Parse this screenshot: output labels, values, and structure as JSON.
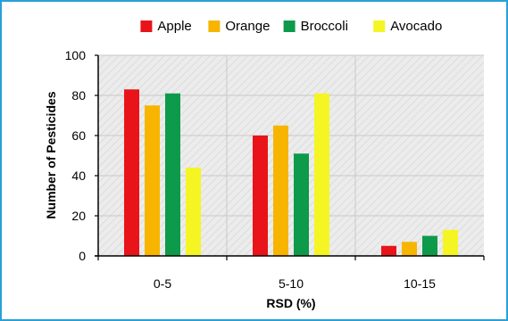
{
  "chart_data": {
    "type": "bar",
    "title": "",
    "xlabel": "RSD (%)",
    "ylabel": "Number of Pesticides",
    "categories": [
      "0-5",
      "5-10",
      "10-15"
    ],
    "ylim": [
      0,
      100
    ],
    "yticks": [
      "0",
      "20",
      "40",
      "60",
      "80",
      "100"
    ],
    "grid": true,
    "legend_position": "top",
    "series": [
      {
        "name": "Apple",
        "color": "#e8141a",
        "values": [
          83,
          60,
          5
        ]
      },
      {
        "name": "Orange",
        "color": "#f7b500",
        "values": [
          75,
          65,
          7
        ]
      },
      {
        "name": "Broccoli",
        "color": "#0d9a4a",
        "values": [
          81,
          51,
          10
        ]
      },
      {
        "name": "Avocado",
        "color": "#f5f523",
        "values": [
          44,
          81,
          13
        ]
      }
    ]
  },
  "colors": {
    "frame_border": "#2a9fd6",
    "plot_background": "#ebebeb",
    "grid": "#c8c8c8"
  }
}
